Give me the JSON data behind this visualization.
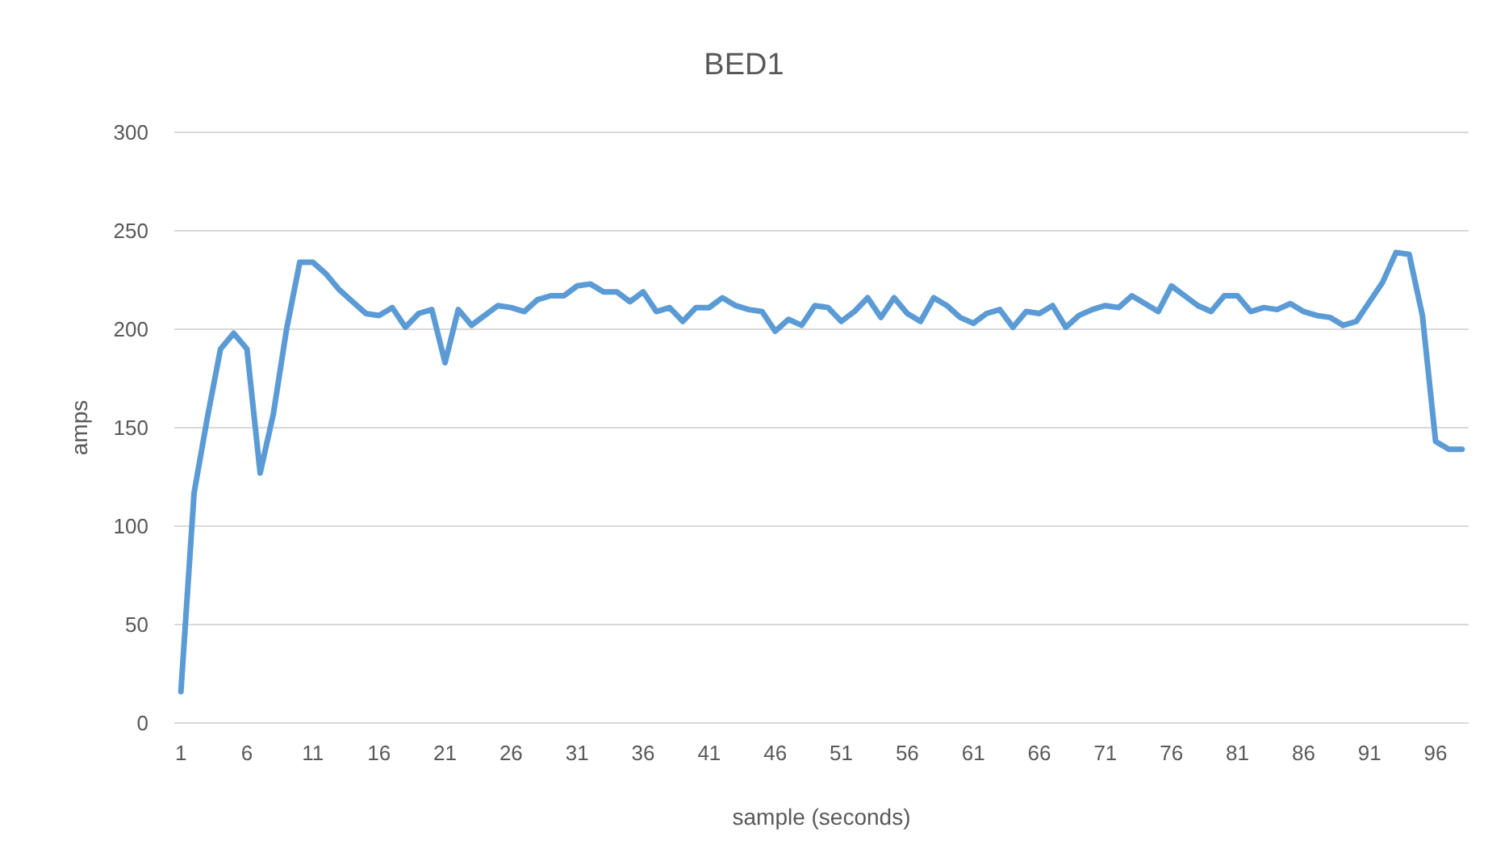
{
  "chart_data": {
    "type": "line",
    "title": "BED1",
    "xlabel": "sample (seconds)",
    "ylabel": "amps",
    "x": [
      1,
      2,
      3,
      4,
      5,
      6,
      7,
      8,
      9,
      10,
      11,
      12,
      13,
      14,
      15,
      16,
      17,
      18,
      19,
      20,
      21,
      22,
      23,
      24,
      25,
      26,
      27,
      28,
      29,
      30,
      31,
      32,
      33,
      34,
      35,
      36,
      37,
      38,
      39,
      40,
      41,
      42,
      43,
      44,
      45,
      46,
      47,
      48,
      49,
      50,
      51,
      52,
      53,
      54,
      55,
      56,
      57,
      58,
      59,
      60,
      61,
      62,
      63,
      64,
      65,
      66,
      67,
      68,
      69,
      70,
      71,
      72,
      73,
      74,
      75,
      76,
      77,
      78,
      79,
      80,
      81,
      82,
      83,
      84,
      85,
      86,
      87,
      88,
      89,
      90,
      91,
      92,
      93,
      94,
      95,
      96,
      97,
      98
    ],
    "xlim": [
      0.5,
      98.5
    ],
    "xticks": [
      1,
      6,
      11,
      16,
      21,
      26,
      31,
      36,
      41,
      46,
      51,
      56,
      61,
      66,
      71,
      76,
      81,
      86,
      91,
      96
    ],
    "series": [
      {
        "color": "#5b9bd5",
        "values": [
          16,
          117,
          155,
          190,
          198,
          190,
          127,
          157,
          200,
          234,
          234,
          228,
          220,
          214,
          208,
          207,
          211,
          201,
          208,
          210,
          183,
          210,
          202,
          207,
          212,
          211,
          209,
          215,
          217,
          217,
          222,
          223,
          219,
          219,
          214,
          219,
          209,
          211,
          204,
          211,
          211,
          216,
          212,
          210,
          209,
          199,
          205,
          202,
          212,
          211,
          204,
          209,
          216,
          206,
          216,
          208,
          204,
          216,
          212,
          206,
          203,
          208,
          210,
          201,
          209,
          208,
          212,
          201,
          207,
          210,
          212,
          211,
          217,
          213,
          209,
          222,
          217,
          212,
          209,
          217,
          217,
          209,
          211,
          210,
          213,
          209,
          207,
          206,
          202,
          204,
          214,
          224,
          239,
          238,
          207,
          143,
          139,
          139
        ]
      }
    ],
    "ylim": [
      0,
      300
    ],
    "yticks": [
      0,
      50,
      100,
      150,
      200,
      250,
      300
    ],
    "grid": "y",
    "marker": "none",
    "line_style": "solid"
  }
}
